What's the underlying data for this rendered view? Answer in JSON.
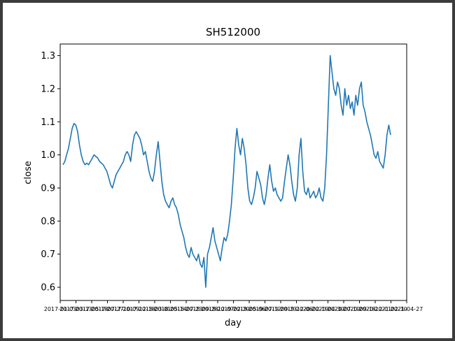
{
  "chart_data": {
    "type": "line",
    "title": "SH512000",
    "xlabel": "day",
    "ylabel": "close",
    "ylim": [
      0.56,
      1.335
    ],
    "y_ticks": [
      "0.6",
      "0.7",
      "0.8",
      "0.9",
      "1.0",
      "1.1",
      "1.2",
      "1.3"
    ],
    "x_tick_labels": [
      "2017-01-03",
      "2017-03-13",
      "2017-05-18",
      "2017-07-27",
      "2017-10-09",
      "2017-12-18",
      "2018-03-01",
      "2018-05-14",
      "2018-07-23",
      "2018-09-28",
      "2018-12-07",
      "2019-02-20",
      "2019-05-06",
      "2019-07-12",
      "2019-09-23",
      "2019-12-06",
      "2020-02-19",
      "2020-04-30",
      "2020-07-10",
      "2020-09-18",
      "2020-12-01",
      "2021-02-10",
      "2021-04-27"
    ],
    "color": "#1f77b4",
    "series": [
      {
        "name": "",
        "values": [
          0.97,
          0.98,
          1.0,
          1.02,
          1.05,
          1.08,
          1.095,
          1.09,
          1.07,
          1.03,
          1.0,
          0.98,
          0.97,
          0.975,
          0.97,
          0.98,
          0.99,
          1.0,
          0.995,
          0.99,
          0.98,
          0.975,
          0.97,
          0.96,
          0.95,
          0.93,
          0.91,
          0.9,
          0.92,
          0.94,
          0.95,
          0.96,
          0.97,
          0.98,
          1.0,
          1.01,
          1.0,
          0.98,
          1.03,
          1.06,
          1.07,
          1.06,
          1.05,
          1.03,
          1.0,
          1.01,
          0.98,
          0.95,
          0.93,
          0.92,
          0.95,
          1.0,
          1.04,
          0.98,
          0.92,
          0.88,
          0.86,
          0.85,
          0.84,
          0.86,
          0.87,
          0.85,
          0.84,
          0.82,
          0.79,
          0.77,
          0.75,
          0.72,
          0.7,
          0.69,
          0.72,
          0.7,
          0.69,
          0.68,
          0.7,
          0.67,
          0.66,
          0.69,
          0.6,
          0.7,
          0.72,
          0.75,
          0.78,
          0.74,
          0.72,
          0.7,
          0.68,
          0.72,
          0.75,
          0.74,
          0.76,
          0.8,
          0.85,
          0.93,
          1.02,
          1.08,
          1.03,
          1.0,
          1.05,
          1.02,
          0.97,
          0.9,
          0.86,
          0.85,
          0.87,
          0.9,
          0.95,
          0.93,
          0.91,
          0.87,
          0.85,
          0.88,
          0.93,
          0.97,
          0.92,
          0.89,
          0.9,
          0.88,
          0.87,
          0.86,
          0.87,
          0.92,
          0.96,
          1.0,
          0.97,
          0.92,
          0.88,
          0.86,
          0.9,
          1.0,
          1.05,
          0.95,
          0.89,
          0.88,
          0.9,
          0.87,
          0.88,
          0.89,
          0.87,
          0.88,
          0.9,
          0.87,
          0.86,
          0.9,
          1.0,
          1.15,
          1.3,
          1.25,
          1.2,
          1.18,
          1.22,
          1.2,
          1.15,
          1.12,
          1.2,
          1.15,
          1.18,
          1.14,
          1.16,
          1.12,
          1.18,
          1.15,
          1.2,
          1.22,
          1.15,
          1.13,
          1.1,
          1.08,
          1.06,
          1.03,
          1.0,
          0.99,
          1.01,
          0.98,
          0.97,
          0.96,
          1.0,
          1.06,
          1.09,
          1.06
        ]
      }
    ]
  }
}
